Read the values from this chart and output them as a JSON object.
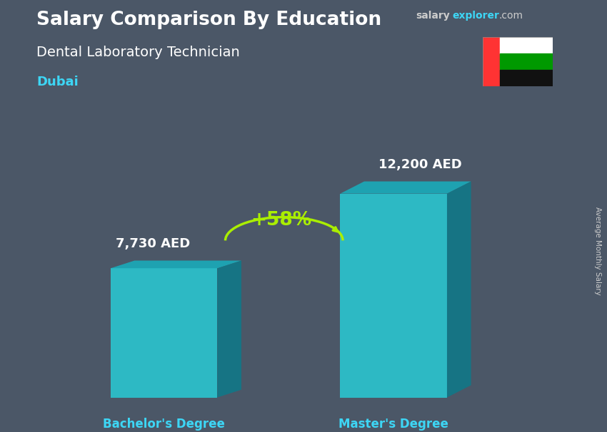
{
  "title_bold": "Salary Comparison By Education",
  "subtitle": "Dental Laboratory Technician",
  "location": "Dubai",
  "ylabel": "Average Monthly Salary",
  "categories": [
    "Bachelor's Degree",
    "Master's Degree"
  ],
  "values": [
    7730,
    12200
  ],
  "value_labels": [
    "7,730 AED",
    "12,200 AED"
  ],
  "pct_change": "+58%",
  "bar_color_face": "#29C8D2",
  "bar_color_top": "#1AABBA",
  "bar_color_side": "#0D7A8A",
  "bg_color": "#556070",
  "title_color": "#ffffff",
  "subtitle_color": "#ffffff",
  "location_color": "#3DD6F5",
  "value_color": "#ffffff",
  "label_color": "#3DD6F5",
  "pct_color": "#AAEE00",
  "watermark_salary_color": "#cccccc",
  "watermark_explorer_color": "#3DD6F5",
  "watermark_com_color": "#cccccc",
  "arrow_color": "#AAEE00",
  "flag_red": "#FF3333",
  "flag_green": "#009900",
  "flag_white": "#FFFFFF",
  "flag_black": "#111111"
}
